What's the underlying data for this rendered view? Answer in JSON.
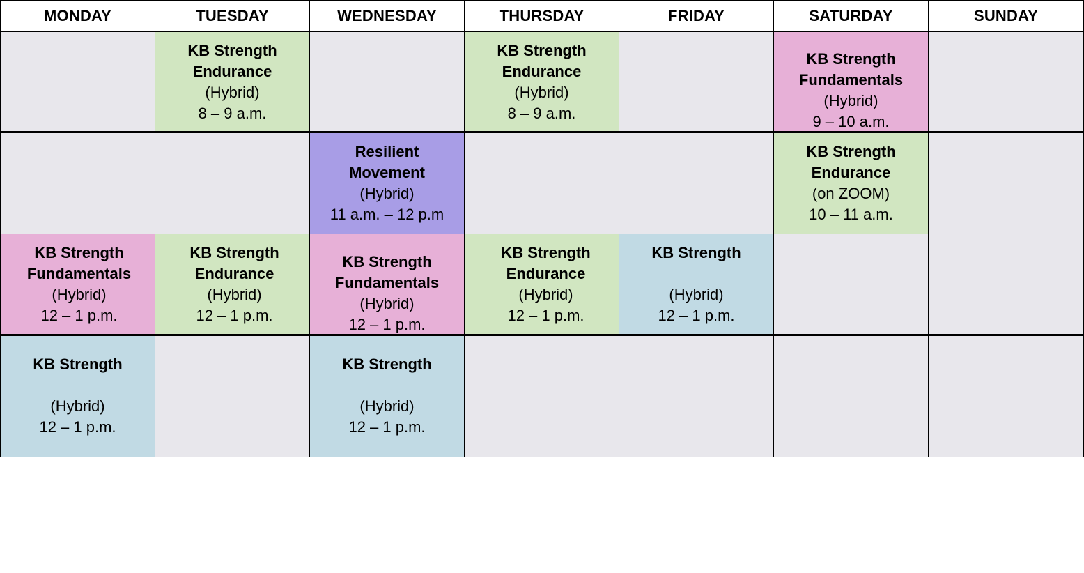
{
  "days": [
    "MONDAY",
    "TUESDAY",
    "WEDNESDAY",
    "THURSDAY",
    "FRIDAY",
    "SATURDAY",
    "SUNDAY"
  ],
  "classes": {
    "tue_1": {
      "title_1": "KB Strength",
      "title_2": "Endurance",
      "mode": "(Hybrid)",
      "time": "8 – 9 a.m."
    },
    "thu_1": {
      "title_1": "KB Strength",
      "title_2": "Endurance",
      "mode": "(Hybrid)",
      "time": "8 – 9 a.m."
    },
    "sat_1": {
      "title_1": "KB Strength",
      "title_2": "Fundamentals",
      "mode": "(Hybrid)",
      "time": "9 – 10 a.m."
    },
    "wed_2": {
      "title_1": "Resilient",
      "title_2": "Movement",
      "mode": "(Hybrid)",
      "time": "11 a.m. – 12 p.m"
    },
    "sat_2": {
      "title_1": "KB Strength",
      "title_2": "Endurance",
      "mode": "(on ZOOM)",
      "time": "10 – 11 a.m."
    },
    "mon_3": {
      "title_1": "KB Strength",
      "title_2": "Fundamentals",
      "mode": "(Hybrid)",
      "time": "12 – 1 p.m."
    },
    "tue_3": {
      "title_1": "KB Strength",
      "title_2": "Endurance",
      "mode": "(Hybrid)",
      "time": "12 – 1 p.m."
    },
    "wed_3": {
      "title_1": "KB Strength",
      "title_2": "Fundamentals",
      "mode": "(Hybrid)",
      "time": "12 – 1 p.m."
    },
    "thu_3": {
      "title_1": "KB Strength",
      "title_2": "Endurance",
      "mode": "(Hybrid)",
      "time": "12 – 1 p.m."
    },
    "fri_3": {
      "title_1": "KB Strength",
      "mode": "(Hybrid)",
      "time": "12 – 1 p.m."
    },
    "mon_4": {
      "title_1": "KB Strength",
      "mode": "(Hybrid)",
      "time": "12 – 1 p.m."
    },
    "wed_4": {
      "title_1": "KB Strength",
      "mode": "(Hybrid)",
      "time": "12 – 1 p.m."
    }
  },
  "colors": {
    "endurance": "#d1e6c1",
    "fundamentals": "#e7b0d7",
    "resilient": "#a89de6",
    "strength": "#c1dae4",
    "empty": "#e8e7ec"
  }
}
